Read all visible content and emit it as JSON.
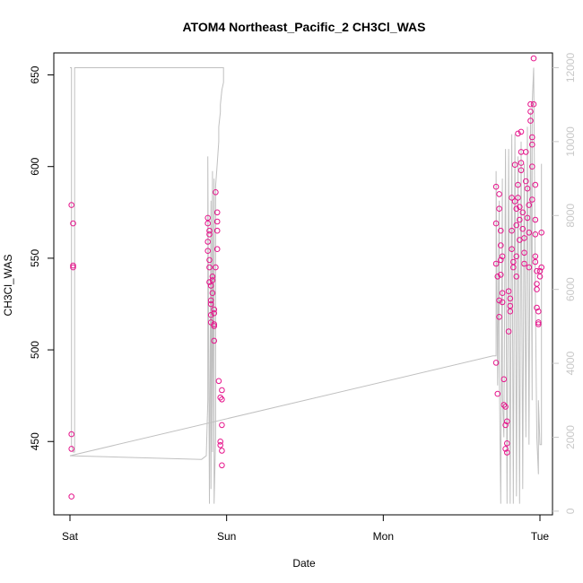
{
  "chart_data": {
    "type": "scatter",
    "title": "ATOM4 Northeast_Pacific_2 CH3Cl_WAS",
    "xlabel": "Date",
    "ylabel": "CH3Cl_WAS",
    "x_ticks": [
      {
        "pos": 0,
        "label": "Sat"
      },
      {
        "pos": 1,
        "label": "Sun"
      },
      {
        "pos": 2,
        "label": "Mon"
      },
      {
        "pos": 3,
        "label": "Tue"
      }
    ],
    "xlim": [
      0,
      3
    ],
    "ylim": [
      410,
      662
    ],
    "y_ticks": [
      450,
      500,
      550,
      600,
      650
    ],
    "y2lim": [
      -100,
      12400
    ],
    "y2_ticks": [
      0,
      2000,
      4000,
      6000,
      8000,
      10000,
      12000
    ],
    "grid": false,
    "colors": {
      "points": "#e6158c",
      "altitude_line": "#c0c0c0",
      "right_axis": "#c8c8c8"
    },
    "series": [
      {
        "type": "scatter",
        "points": [
          [
            0.01,
            579
          ],
          [
            0.02,
            569
          ],
          [
            0.02,
            545
          ],
          [
            0.02,
            546
          ],
          [
            0.01,
            454
          ],
          [
            0.01,
            446
          ],
          [
            0.01,
            420
          ],
          [
            0.88,
            572
          ],
          [
            0.88,
            569
          ],
          [
            0.89,
            563
          ],
          [
            0.89,
            565
          ],
          [
            0.88,
            559
          ],
          [
            0.88,
            554
          ],
          [
            0.89,
            549
          ],
          [
            0.89,
            545
          ],
          [
            0.89,
            537
          ],
          [
            0.9,
            535
          ],
          [
            0.9,
            527
          ],
          [
            0.9,
            525
          ],
          [
            0.9,
            519
          ],
          [
            0.9,
            515
          ],
          [
            0.91,
            540
          ],
          [
            0.91,
            538
          ],
          [
            0.91,
            531
          ],
          [
            0.92,
            522
          ],
          [
            0.92,
            520
          ],
          [
            0.92,
            514
          ],
          [
            0.92,
            513
          ],
          [
            0.92,
            505
          ],
          [
            0.93,
            545
          ],
          [
            0.93,
            586
          ],
          [
            0.94,
            575
          ],
          [
            0.94,
            570
          ],
          [
            0.94,
            565
          ],
          [
            0.94,
            555
          ],
          [
            0.95,
            483
          ],
          [
            0.96,
            474
          ],
          [
            0.97,
            473
          ],
          [
            0.97,
            478
          ],
          [
            0.97,
            459
          ],
          [
            0.96,
            450
          ],
          [
            0.96,
            448
          ],
          [
            0.97,
            445
          ],
          [
            0.97,
            437
          ],
          [
            2.72,
            589
          ],
          [
            2.72,
            569
          ],
          [
            2.72,
            547
          ],
          [
            2.72,
            493
          ],
          [
            2.73,
            476
          ],
          [
            2.73,
            540
          ],
          [
            2.74,
            527
          ],
          [
            2.74,
            518
          ],
          [
            2.74,
            585
          ],
          [
            2.74,
            577
          ],
          [
            2.75,
            565
          ],
          [
            2.75,
            557
          ],
          [
            2.75,
            549
          ],
          [
            2.75,
            541
          ],
          [
            2.76,
            551
          ],
          [
            2.76,
            531
          ],
          [
            2.76,
            526
          ],
          [
            2.77,
            484
          ],
          [
            2.77,
            470
          ],
          [
            2.78,
            469
          ],
          [
            2.78,
            459
          ],
          [
            2.78,
            446
          ],
          [
            2.79,
            444
          ],
          [
            2.79,
            461
          ],
          [
            2.79,
            449
          ],
          [
            2.8,
            510
          ],
          [
            2.8,
            532
          ],
          [
            2.81,
            528
          ],
          [
            2.81,
            524
          ],
          [
            2.81,
            521
          ],
          [
            2.82,
            583
          ],
          [
            2.82,
            565
          ],
          [
            2.82,
            555
          ],
          [
            2.83,
            548
          ],
          [
            2.83,
            545
          ],
          [
            2.84,
            601
          ],
          [
            2.84,
            581
          ],
          [
            2.85,
            577
          ],
          [
            2.85,
            568
          ],
          [
            2.85,
            551
          ],
          [
            2.85,
            540
          ],
          [
            2.86,
            618
          ],
          [
            2.86,
            590
          ],
          [
            2.86,
            583
          ],
          [
            2.87,
            578
          ],
          [
            2.87,
            571
          ],
          [
            2.87,
            560
          ],
          [
            2.88,
            619
          ],
          [
            2.88,
            608
          ],
          [
            2.88,
            602
          ],
          [
            2.88,
            598
          ],
          [
            2.89,
            575
          ],
          [
            2.89,
            566
          ],
          [
            2.9,
            561
          ],
          [
            2.9,
            553
          ],
          [
            2.9,
            547
          ],
          [
            2.91,
            608
          ],
          [
            2.91,
            592
          ],
          [
            2.92,
            588
          ],
          [
            2.92,
            572
          ],
          [
            2.93,
            579
          ],
          [
            2.93,
            564
          ],
          [
            2.93,
            545
          ],
          [
            2.94,
            634
          ],
          [
            2.94,
            630
          ],
          [
            2.94,
            625
          ],
          [
            2.95,
            616
          ],
          [
            2.95,
            612
          ],
          [
            2.95,
            600
          ],
          [
            2.95,
            582
          ],
          [
            2.96,
            659
          ],
          [
            2.96,
            634
          ],
          [
            2.97,
            590
          ],
          [
            2.97,
            571
          ],
          [
            2.97,
            563
          ],
          [
            2.97,
            551
          ],
          [
            2.97,
            548
          ],
          [
            2.98,
            543
          ],
          [
            2.98,
            536
          ],
          [
            2.98,
            533
          ],
          [
            2.98,
            523
          ],
          [
            2.99,
            521
          ],
          [
            2.99,
            515
          ],
          [
            2.99,
            514
          ],
          [
            3.0,
            543
          ],
          [
            3.0,
            540
          ],
          [
            3.01,
            545
          ],
          [
            3.01,
            564
          ]
        ]
      },
      {
        "type": "line",
        "axis": "right",
        "points": [
          [
            0.0,
            12000
          ],
          [
            0.01,
            12000
          ],
          [
            0.01,
            1800
          ],
          [
            0.02,
            1600
          ],
          [
            0.03,
            1600
          ],
          [
            0.03,
            12000
          ],
          [
            0.98,
            12000
          ],
          [
            0.98,
            11600
          ],
          [
            0.97,
            11400
          ],
          [
            0.96,
            11000
          ],
          [
            0.96,
            10800
          ],
          [
            0.95,
            10400
          ],
          [
            0.95,
            10000
          ],
          [
            0.94,
            9400
          ],
          [
            0.93,
            8800
          ],
          [
            0.93,
            8600
          ],
          [
            0.93,
            2000
          ],
          [
            0.92,
            200
          ],
          [
            0.92,
            9000
          ],
          [
            0.91,
            1600
          ],
          [
            0.91,
            9200
          ],
          [
            0.9,
            600
          ],
          [
            0.9,
            8400
          ],
          [
            0.89,
            200
          ],
          [
            0.88,
            9600
          ],
          [
            0.88,
            3000
          ],
          [
            0.87,
            1500
          ],
          [
            0.84,
            1400
          ],
          [
            0.0,
            1500
          ],
          [
            2.7,
            4200
          ],
          [
            2.72,
            4200
          ],
          [
            2.72,
            9200
          ],
          [
            2.73,
            3400
          ],
          [
            2.74,
            8400
          ],
          [
            2.74,
            4000
          ],
          [
            2.75,
            200
          ],
          [
            2.76,
            9000
          ],
          [
            2.76,
            3200
          ],
          [
            2.77,
            2000
          ],
          [
            2.78,
            9800
          ],
          [
            2.79,
            200
          ],
          [
            2.8,
            9800
          ],
          [
            2.81,
            200
          ],
          [
            2.82,
            10200
          ],
          [
            2.83,
            200
          ],
          [
            2.84,
            10200
          ],
          [
            2.85,
            400
          ],
          [
            2.86,
            9600
          ],
          [
            2.87,
            200
          ],
          [
            2.88,
            10000
          ],
          [
            2.89,
            600
          ],
          [
            2.9,
            9400
          ],
          [
            2.91,
            2000
          ],
          [
            2.92,
            10400
          ],
          [
            2.93,
            1800
          ],
          [
            2.94,
            10800
          ],
          [
            2.95,
            3000
          ],
          [
            2.95,
            11000
          ],
          [
            2.96,
            12000
          ],
          [
            2.97,
            6000
          ],
          [
            2.98,
            2000
          ],
          [
            2.99,
            1000
          ],
          [
            2.99,
            3000
          ],
          [
            3.0,
            1800
          ],
          [
            3.01,
            1800
          ],
          [
            3.01,
            9400
          ]
        ]
      }
    ]
  }
}
